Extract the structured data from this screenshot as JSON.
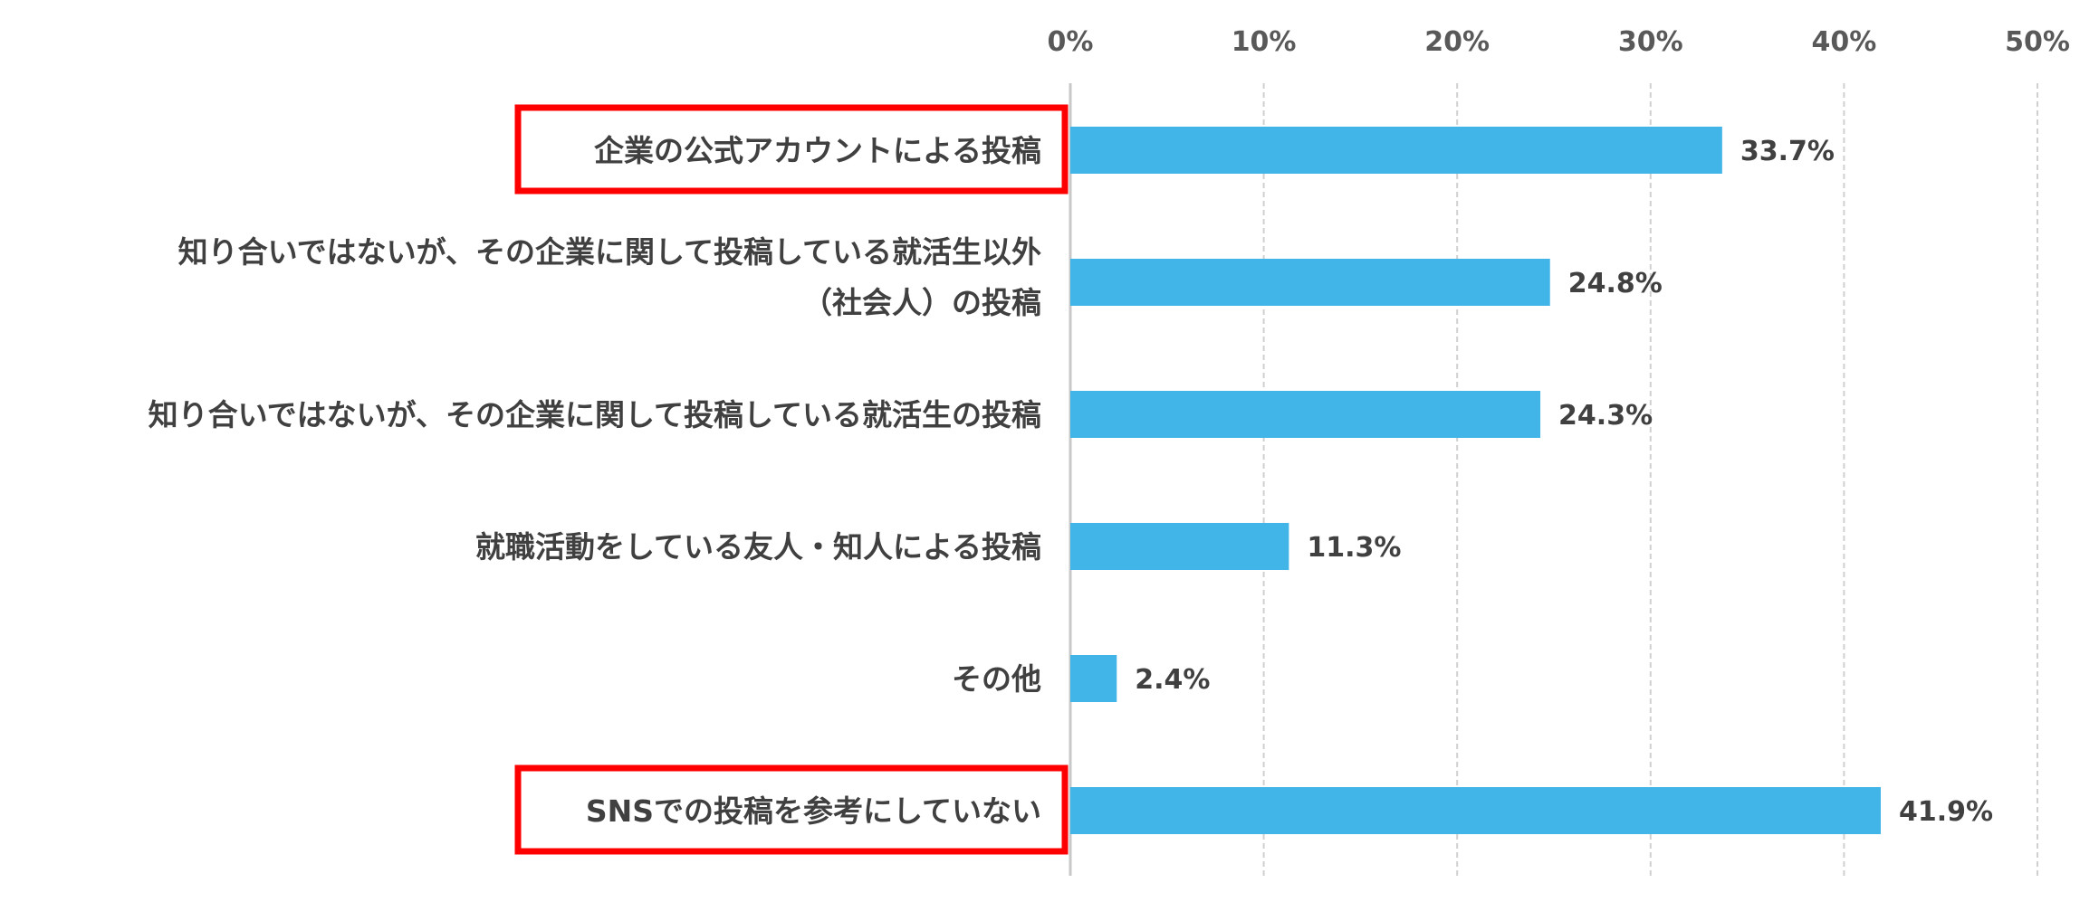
{
  "chart_data": {
    "type": "bar",
    "orientation": "horizontal",
    "categories": [
      [
        "企業の公式アカウントによる投稿"
      ],
      [
        "知り合いではないが、その企業に関して投稿している就活生以外",
        "（社会人）の投稿"
      ],
      [
        "知り合いではないが、その企業に関して投稿している就活生の投稿"
      ],
      [
        "就職活動をしている友人・知人による投稿"
      ],
      [
        "その他"
      ],
      [
        "SNSでの投稿を参考にしていない"
      ]
    ],
    "values": [
      33.7,
      24.8,
      24.3,
      11.3,
      2.4,
      41.9
    ],
    "value_labels": [
      "33.7%",
      "24.8%",
      "24.3%",
      "11.3%",
      "2.4%",
      "41.9%"
    ],
    "highlighted": [
      true,
      false,
      false,
      false,
      false,
      true
    ],
    "xlim": [
      0,
      50
    ],
    "ticks": [
      0,
      10,
      20,
      30,
      40,
      50
    ],
    "tick_labels": [
      "0%",
      "10%",
      "20%",
      "30%",
      "40%",
      "50%"
    ],
    "x_axis_position": "top",
    "grid": true,
    "colors": {
      "bar": "#41B4E8",
      "highlight_box": "#FF0000",
      "grid": "#D0D0D0",
      "baseline": "#C8C8C8"
    }
  }
}
